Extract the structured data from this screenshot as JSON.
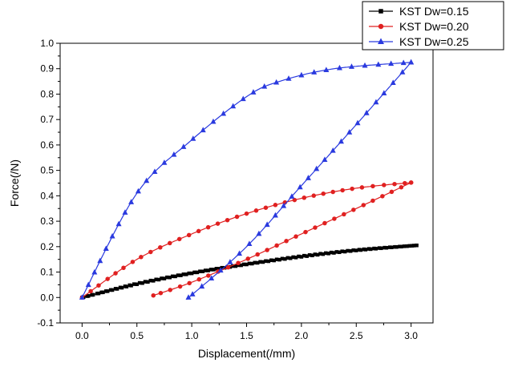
{
  "chart_data": {
    "type": "line",
    "title": "",
    "xlabel": "Displacement(/mm)",
    "ylabel": "Force(/N)",
    "xlim": [
      -0.2,
      3.2
    ],
    "ylim": [
      -0.1,
      1.0
    ],
    "xticks": [
      "0.0",
      "0.5",
      "1.0",
      "1.5",
      "2.0",
      "2.5",
      "3.0"
    ],
    "yticks": [
      "-0.1",
      "0.0",
      "0.1",
      "0.2",
      "0.3",
      "0.4",
      "0.5",
      "0.6",
      "0.7",
      "0.8",
      "0.9",
      "1.0"
    ],
    "grid": false,
    "legend_position": "top-right",
    "series": [
      {
        "name": "KST Dw=0.15",
        "color": "#000000",
        "marker": "square",
        "loading": [
          [
            0.0,
            0.0
          ],
          [
            0.5,
            0.055
          ],
          [
            1.0,
            0.097
          ],
          [
            1.5,
            0.132
          ],
          [
            2.0,
            0.163
          ],
          [
            2.5,
            0.187
          ],
          [
            3.05,
            0.205
          ]
        ],
        "unloading": [
          [
            3.05,
            0.205
          ],
          [
            2.5,
            0.185
          ],
          [
            2.0,
            0.16
          ],
          [
            1.5,
            0.13
          ],
          [
            1.0,
            0.095
          ],
          [
            0.5,
            0.052
          ],
          [
            0.0,
            0.0
          ]
        ]
      },
      {
        "name": "KST Dw=0.20",
        "color": "#e02020",
        "marker": "circle",
        "loading": [
          [
            0.0,
            0.0
          ],
          [
            0.5,
            0.15
          ],
          [
            1.0,
            0.25
          ],
          [
            1.5,
            0.33
          ],
          [
            2.0,
            0.39
          ],
          [
            2.5,
            0.43
          ],
          [
            3.0,
            0.452
          ]
        ],
        "unloading": [
          [
            3.0,
            0.452
          ],
          [
            2.5,
            0.35
          ],
          [
            2.0,
            0.25
          ],
          [
            1.5,
            0.15
          ],
          [
            1.0,
            0.06
          ],
          [
            0.65,
            0.008
          ]
        ]
      },
      {
        "name": "KST Dw=0.25",
        "color": "#2a3adf",
        "marker": "triangle",
        "loading": [
          [
            0.0,
            0.0
          ],
          [
            0.5,
            0.41
          ],
          [
            1.0,
            0.62
          ],
          [
            1.5,
            0.79
          ],
          [
            1.8,
            0.85
          ],
          [
            2.3,
            0.9
          ],
          [
            3.0,
            0.925
          ]
        ],
        "unloading": [
          [
            3.0,
            0.925
          ],
          [
            2.5,
            0.68
          ],
          [
            2.0,
            0.44
          ],
          [
            1.5,
            0.2
          ],
          [
            1.0,
            0.01
          ],
          [
            0.97,
            0.0
          ]
        ]
      }
    ]
  }
}
